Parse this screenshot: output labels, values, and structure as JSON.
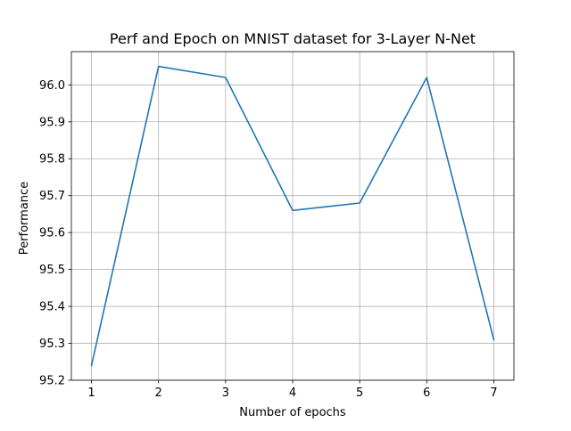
{
  "chart_data": {
    "type": "line",
    "title": "Perf and Epoch on MNIST dataset for 3-Layer N-Net",
    "xlabel": "Number of epochs",
    "ylabel": "Performance",
    "x": [
      1,
      2,
      3,
      4,
      5,
      6,
      7
    ],
    "series": [
      {
        "values": [
          95.24,
          96.05,
          96.02,
          95.66,
          95.68,
          96.02,
          95.31
        ],
        "color": "#1f77b4"
      }
    ],
    "xticks": [
      "1",
      "2",
      "3",
      "4",
      "5",
      "6",
      "7"
    ],
    "yticks": [
      "95.2",
      "95.3",
      "95.4",
      "95.5",
      "95.6",
      "95.7",
      "95.8",
      "95.9",
      "96.0"
    ],
    "xlim": [
      0.7,
      7.3
    ],
    "ylim": [
      95.2,
      96.09
    ],
    "grid": true,
    "legend": "none"
  }
}
